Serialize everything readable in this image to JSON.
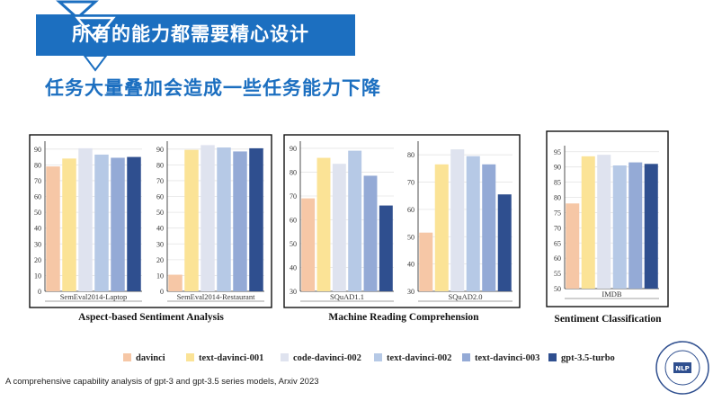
{
  "header": {
    "title": "所有的能力都需要精心设计",
    "subtitle": "任务大量叠加会造成一些任务能力下降"
  },
  "colors": {
    "banner": "#1c6fc0",
    "series": [
      "#f6c7a6",
      "#fbe396",
      "#dfe3ef",
      "#b6c9e6",
      "#94aad6",
      "#2f4f8f"
    ]
  },
  "legend": [
    "davinci",
    "text-davinci-001",
    "code-davinci-002",
    "text-davinci-002",
    "text-davinci-003",
    "gpt-3.5-turbo"
  ],
  "citation": "A comprehensive capability analysis of gpt-3 and gpt-3.5 series models, Arxiv 2023",
  "logo": {
    "text": "FUDAN UNIVERSITY NATURAL LANGUAGE PROCESSING",
    "center": "NLP"
  },
  "chart_data": [
    {
      "type": "bar",
      "group": "Aspect-based Sentiment Analysis",
      "xlabel": "SemEval2014-Laptop",
      "ylim": [
        0,
        95
      ],
      "yticks": [
        0,
        10,
        20,
        30,
        40,
        50,
        60,
        70,
        80,
        90
      ],
      "values": [
        79,
        84,
        90.5,
        86.5,
        84.5,
        85
      ]
    },
    {
      "type": "bar",
      "group": "Aspect-based Sentiment Analysis",
      "xlabel": "SemEval2014-Restaurant",
      "ylim": [
        0,
        95
      ],
      "yticks": [
        0,
        10,
        20,
        30,
        40,
        50,
        60,
        70,
        80,
        90
      ],
      "values": [
        10.5,
        89.5,
        92.5,
        91,
        88.5,
        90.5
      ]
    },
    {
      "type": "bar",
      "group": "Machine Reading Comprehension",
      "xlabel": "SQuAD1.1",
      "ylim": [
        30,
        93
      ],
      "yticks": [
        30,
        40,
        50,
        60,
        70,
        80,
        90
      ],
      "values": [
        69,
        86,
        83.5,
        89,
        78.5,
        66
      ]
    },
    {
      "type": "bar",
      "group": "Machine Reading Comprehension",
      "xlabel": "SQuAD2.0",
      "ylim": [
        30,
        85
      ],
      "yticks": [
        30,
        40,
        50,
        60,
        70,
        80
      ],
      "values": [
        51.5,
        76.5,
        82,
        79.5,
        76.5,
        65.5
      ]
    },
    {
      "type": "bar",
      "group": "Sentiment Classification",
      "xlabel": "IMDB",
      "ylim": [
        50,
        97
      ],
      "yticks": [
        50,
        55,
        60,
        65,
        70,
        75,
        80,
        85,
        90,
        95
      ],
      "values": [
        78,
        93.5,
        94,
        90.5,
        91.5,
        91
      ]
    }
  ]
}
